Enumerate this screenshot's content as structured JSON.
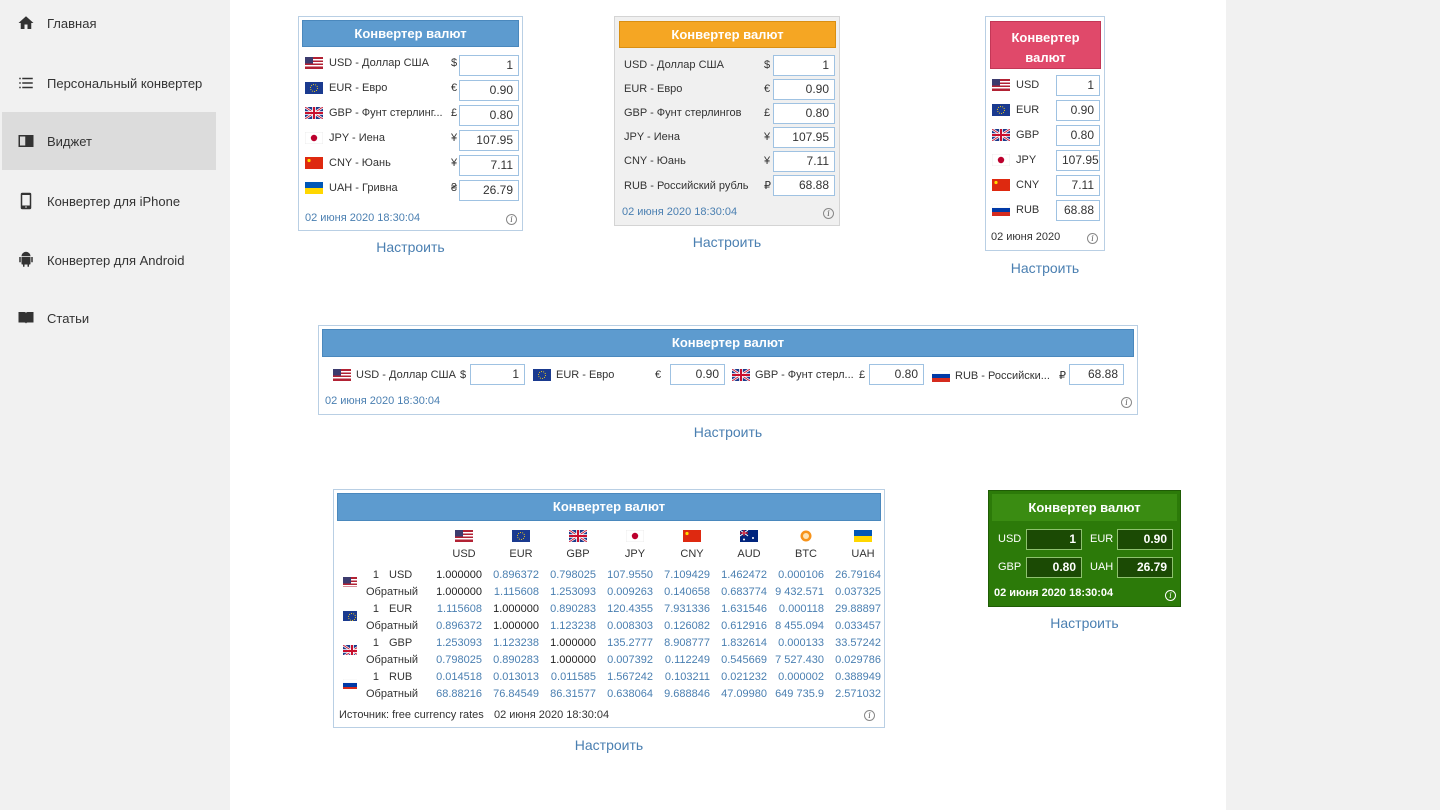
{
  "sidebar": {
    "items": [
      {
        "label": "Главная",
        "icon": "home-icon"
      },
      {
        "label": "Персональный конвертер",
        "icon": "list-icon"
      },
      {
        "label": "Виджет",
        "icon": "widget-icon"
      },
      {
        "label": "Конвертер для iPhone",
        "icon": "phone-icon"
      },
      {
        "label": "Конвертер для Android",
        "icon": "android-icon"
      },
      {
        "label": "Статьи",
        "icon": "book-icon"
      }
    ]
  },
  "common": {
    "title": "Конвертер валют",
    "title_wrapped_1": "Конвертер",
    "title_wrapped_2": "валют",
    "setup": "Настроить",
    "date_full": "02 июня 2020 18:30:04",
    "date_short": "02 июня 2020",
    "info": "i"
  },
  "w1": {
    "rows": [
      {
        "label": "USD - Доллар США",
        "sym": "$",
        "value": "1"
      },
      {
        "label": "EUR - Евро",
        "sym": "€",
        "value": "0.90"
      },
      {
        "label": "GBP - Фунт стерлинг...",
        "sym": "£",
        "value": "0.80"
      },
      {
        "label": "JPY - Иена",
        "sym": "¥",
        "value": "107.95"
      },
      {
        "label": "CNY - Юань",
        "sym": "¥",
        "value": "7.11"
      },
      {
        "label": "UAH - Гривна",
        "sym": "₴",
        "value": "26.79"
      }
    ]
  },
  "w2": {
    "rows": [
      {
        "label": "USD - Доллар США",
        "sym": "$",
        "value": "1"
      },
      {
        "label": "EUR - Евро",
        "sym": "€",
        "value": "0.90"
      },
      {
        "label": "GBP - Фунт стерлингов",
        "sym": "£",
        "value": "0.80"
      },
      {
        "label": "JPY - Иена",
        "sym": "¥",
        "value": "107.95"
      },
      {
        "label": "CNY - Юань",
        "sym": "¥",
        "value": "7.11"
      },
      {
        "label": "RUB - Российский рубль",
        "sym": "₽",
        "value": "68.88"
      }
    ]
  },
  "w3": {
    "rows": [
      {
        "label": "USD",
        "value": "1"
      },
      {
        "label": "EUR",
        "value": "0.90"
      },
      {
        "label": "GBP",
        "value": "0.80"
      },
      {
        "label": "JPY",
        "value": "107.95"
      },
      {
        "label": "CNY",
        "value": "7.11"
      },
      {
        "label": "RUB",
        "value": "68.88"
      }
    ]
  },
  "w4": {
    "items": [
      {
        "label": "USD - Доллар США",
        "sym": "$",
        "value": "1"
      },
      {
        "label": "EUR - Евро",
        "sym": "€",
        "value": "0.90"
      },
      {
        "label": "GBP - Фунт стерл...",
        "sym": "£",
        "value": "0.80"
      },
      {
        "label": "RUB - Российски...",
        "sym": "₽",
        "value": "68.88"
      }
    ]
  },
  "w5": {
    "headers": [
      "USD",
      "EUR",
      "GBP",
      "JPY",
      "CNY",
      "AUD",
      "BTC",
      "UAH"
    ],
    "reverse_label": "Обратный",
    "rows": [
      {
        "amount": "1",
        "code": "USD",
        "direct": [
          "1.000000",
          "0.896372",
          "0.798025",
          "107.9550",
          "7.109429",
          "1.462472",
          "0.000106",
          "26.79164"
        ],
        "reverse": [
          "1.000000",
          "1.115608",
          "1.253093",
          "0.009263",
          "0.140658",
          "0.683774",
          "9 432.571",
          "0.037325"
        ]
      },
      {
        "amount": "1",
        "code": "EUR",
        "direct": [
          "1.115608",
          "1.000000",
          "0.890283",
          "120.4355",
          "7.931336",
          "1.631546",
          "0.000118",
          "29.88897"
        ],
        "reverse": [
          "0.896372",
          "1.000000",
          "1.123238",
          "0.008303",
          "0.126082",
          "0.612916",
          "8 455.094",
          "0.033457"
        ]
      },
      {
        "amount": "1",
        "code": "GBP",
        "direct": [
          "1.253093",
          "1.123238",
          "1.000000",
          "135.2777",
          "8.908777",
          "1.832614",
          "0.000133",
          "33.57242"
        ],
        "reverse": [
          "0.798025",
          "0.890283",
          "1.000000",
          "0.007392",
          "0.112249",
          "0.545669",
          "7 527.430",
          "0.029786"
        ]
      },
      {
        "amount": "1",
        "code": "RUB",
        "direct": [
          "0.014518",
          "0.013013",
          "0.011585",
          "1.567242",
          "0.103211",
          "0.021232",
          "0.000002",
          "0.388949"
        ],
        "reverse": [
          "68.88216",
          "76.84549",
          "86.31577",
          "0.638064",
          "9.688846",
          "47.09980",
          "649 735.9",
          "2.571032"
        ]
      }
    ],
    "source": "Источник: free currency rates"
  },
  "w6": {
    "items": [
      {
        "label": "USD",
        "value": "1"
      },
      {
        "label": "EUR",
        "value": "0.90"
      },
      {
        "label": "GBP",
        "value": "0.80"
      },
      {
        "label": "UAH",
        "value": "26.79"
      }
    ]
  }
}
